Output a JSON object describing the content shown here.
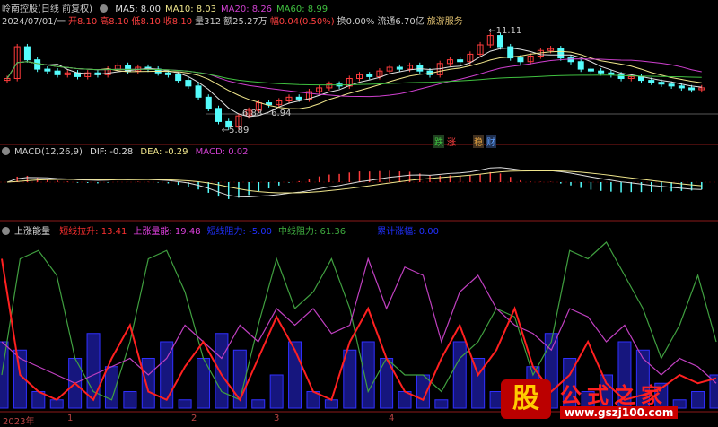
{
  "header": {
    "title": "岭南控股(日线 前复权)",
    "ma": [
      {
        "label": "MA5: 8.00",
        "color": "#e0e0e0"
      },
      {
        "label": "MA10: 8.03",
        "color": "#f0e68c"
      },
      {
        "label": "MA20: 8.26",
        "color": "#d040d0"
      },
      {
        "label": "MA60: 8.99",
        "color": "#40c040"
      }
    ],
    "info": [
      {
        "label": "2024/07/01/一",
        "color": "#cccccc"
      },
      {
        "label": "开8.10",
        "color": "#ff4040"
      },
      {
        "label": "高8.10",
        "color": "#ff4040"
      },
      {
        "label": "低8.10",
        "color": "#ff4040"
      },
      {
        "label": "收8.10",
        "color": "#ff4040"
      },
      {
        "label": "量312",
        "color": "#cccccc"
      },
      {
        "label": "额25.27万",
        "color": "#cccccc"
      },
      {
        "label": "幅0.04(0.50%)",
        "color": "#ff4040"
      },
      {
        "label": "换0.00%",
        "color": "#cccccc"
      },
      {
        "label": "流通6.70亿",
        "color": "#cccccc"
      },
      {
        "label": "旅游服务",
        "color": "#e0c070"
      }
    ]
  },
  "price_annotations": {
    "high": "11.11",
    "low": "5.89",
    "range": "6.88 - 6.94"
  },
  "badges": [
    {
      "label": "跌",
      "color": "#40c040"
    },
    {
      "label": "涨",
      "color": "#ff4040"
    },
    {
      "label": "稳",
      "color": "#e0a040"
    },
    {
      "label": "财",
      "color": "#60a0ff"
    }
  ],
  "macd": {
    "title": "MACD(12,26,9)",
    "dif": "DIF: -0.28",
    "dea": "DEA: -0.29",
    "macd": "MACD: 0.02"
  },
  "indicator": {
    "title": "上涨能量",
    "items": [
      {
        "label": "短线拉升: 13.41",
        "color": "#ff3030"
      },
      {
        "label": "上涨量能: 19.48",
        "color": "#e040e0"
      },
      {
        "label": "短线阻力: -5.00",
        "color": "#2030ff"
      },
      {
        "label": "中线阻力: 61.36",
        "color": "#40b040"
      },
      {
        "label": "累计涨幅: 0.00",
        "color": "#2030ff"
      }
    ]
  },
  "xaxis": [
    "2023年",
    "1",
    "2",
    "3",
    "4"
  ],
  "logo": {
    "mark": "股",
    "text": "公式之家",
    "url": "www.gszj100.com"
  },
  "chart_data": {
    "type": "candlestick",
    "closes": [
      8.6,
      10.3,
      9.6,
      9.1,
      9.0,
      8.8,
      8.9,
      8.7,
      8.9,
      8.8,
      9.1,
      9.3,
      9.0,
      9.2,
      9.1,
      8.9,
      8.8,
      8.5,
      8.2,
      7.6,
      7.0,
      6.3,
      6.0,
      6.6,
      6.9,
      7.3,
      7.2,
      7.4,
      7.6,
      7.5,
      7.9,
      8.1,
      8.3,
      8.2,
      8.6,
      8.8,
      8.7,
      9.0,
      9.2,
      9.1,
      9.3,
      9.0,
      8.8,
      9.4,
      9.6,
      9.5,
      9.9,
      10.4,
      10.9,
      10.3,
      9.7,
      9.5,
      9.8,
      10.1,
      10.2,
      9.7,
      9.5,
      9.1,
      9.0,
      8.9,
      8.8,
      8.6,
      8.7,
      8.5,
      8.4,
      8.3,
      8.2,
      8.1,
      8.0,
      8.1
    ],
    "price_range": [
      5.6,
      11.6
    ],
    "indicator_range": [
      0,
      100
    ],
    "short_pull": [
      90,
      20,
      10,
      5,
      15,
      5,
      30,
      50,
      10,
      5,
      25,
      40,
      20,
      5,
      30,
      55,
      35,
      10,
      5,
      40,
      60,
      30,
      10,
      5,
      30,
      50,
      20,
      35,
      60,
      25,
      10,
      20,
      40,
      15,
      5,
      8,
      12,
      20,
      15,
      18
    ],
    "up_energy": [
      40,
      30,
      25,
      20,
      15,
      20,
      25,
      30,
      20,
      30,
      50,
      40,
      30,
      50,
      40,
      60,
      50,
      60,
      45,
      50,
      90,
      60,
      85,
      80,
      40,
      70,
      80,
      60,
      50,
      45,
      35,
      60,
      55,
      40,
      50,
      30,
      20,
      30,
      25,
      15
    ],
    "mid_resist": [
      20,
      90,
      95,
      80,
      30,
      10,
      5,
      40,
      90,
      95,
      70,
      30,
      10,
      5,
      50,
      90,
      60,
      70,
      90,
      60,
      10,
      30,
      20,
      20,
      10,
      30,
      40,
      60,
      55,
      20,
      40,
      95,
      90,
      100,
      80,
      60,
      30,
      50,
      80,
      40
    ],
    "blue_bars": [
      40,
      35,
      10,
      5,
      30,
      45,
      25,
      10,
      30,
      40,
      5,
      30,
      45,
      35,
      5,
      20,
      40,
      10,
      5,
      35,
      40,
      30,
      10,
      20,
      5,
      40,
      30,
      10,
      5,
      25,
      45,
      30,
      10,
      20,
      40,
      35,
      15,
      5,
      10,
      20
    ]
  },
  "colors": {
    "up": "#ff3c3c",
    "down": "#54fcfc",
    "border": "#8b1a1a"
  }
}
